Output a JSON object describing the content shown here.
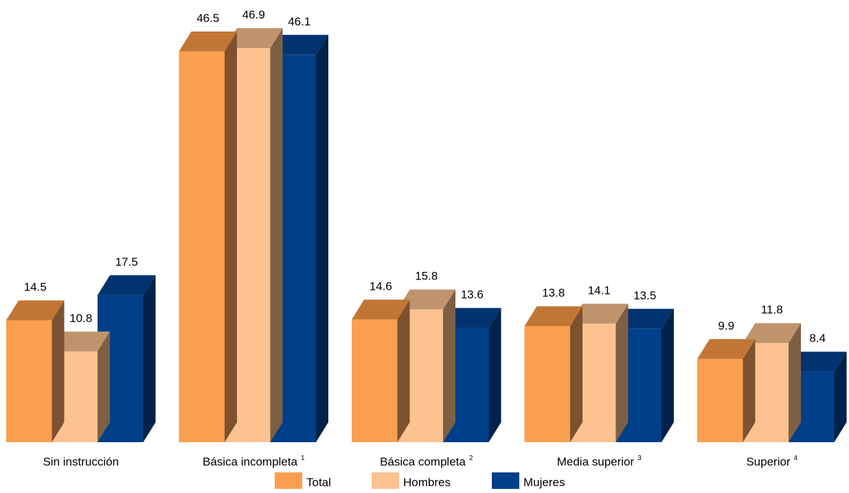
{
  "chart_data": {
    "type": "bar",
    "categories": [
      "Sin instrucción",
      "Básica incompleta",
      "Básica completa",
      "Media superior",
      "Superior"
    ],
    "category_notes": [
      "",
      "1",
      "2",
      "3",
      "4"
    ],
    "series": [
      {
        "name": "Total",
        "values": [
          14.5,
          46.5,
          14.6,
          13.8,
          9.9
        ],
        "color": "#FA9F4F",
        "top_color": "#C27636",
        "side_color": "#7D5230"
      },
      {
        "name": "Hombres",
        "values": [
          10.8,
          46.9,
          15.8,
          14.1,
          11.8
        ],
        "color": "#FCC28F",
        "top_color": "#BF946D",
        "side_color": "#7D5F43"
      },
      {
        "name": "Mujeres",
        "values": [
          17.5,
          46.1,
          13.6,
          13.5,
          8.4
        ],
        "color": "#003F8A",
        "top_color": "#00336F",
        "side_color": "#00224A"
      }
    ],
    "title": "",
    "xlabel": "",
    "ylabel": "",
    "ylim": [
      0,
      46.9
    ],
    "grid": false,
    "legend_position": "bottom"
  }
}
